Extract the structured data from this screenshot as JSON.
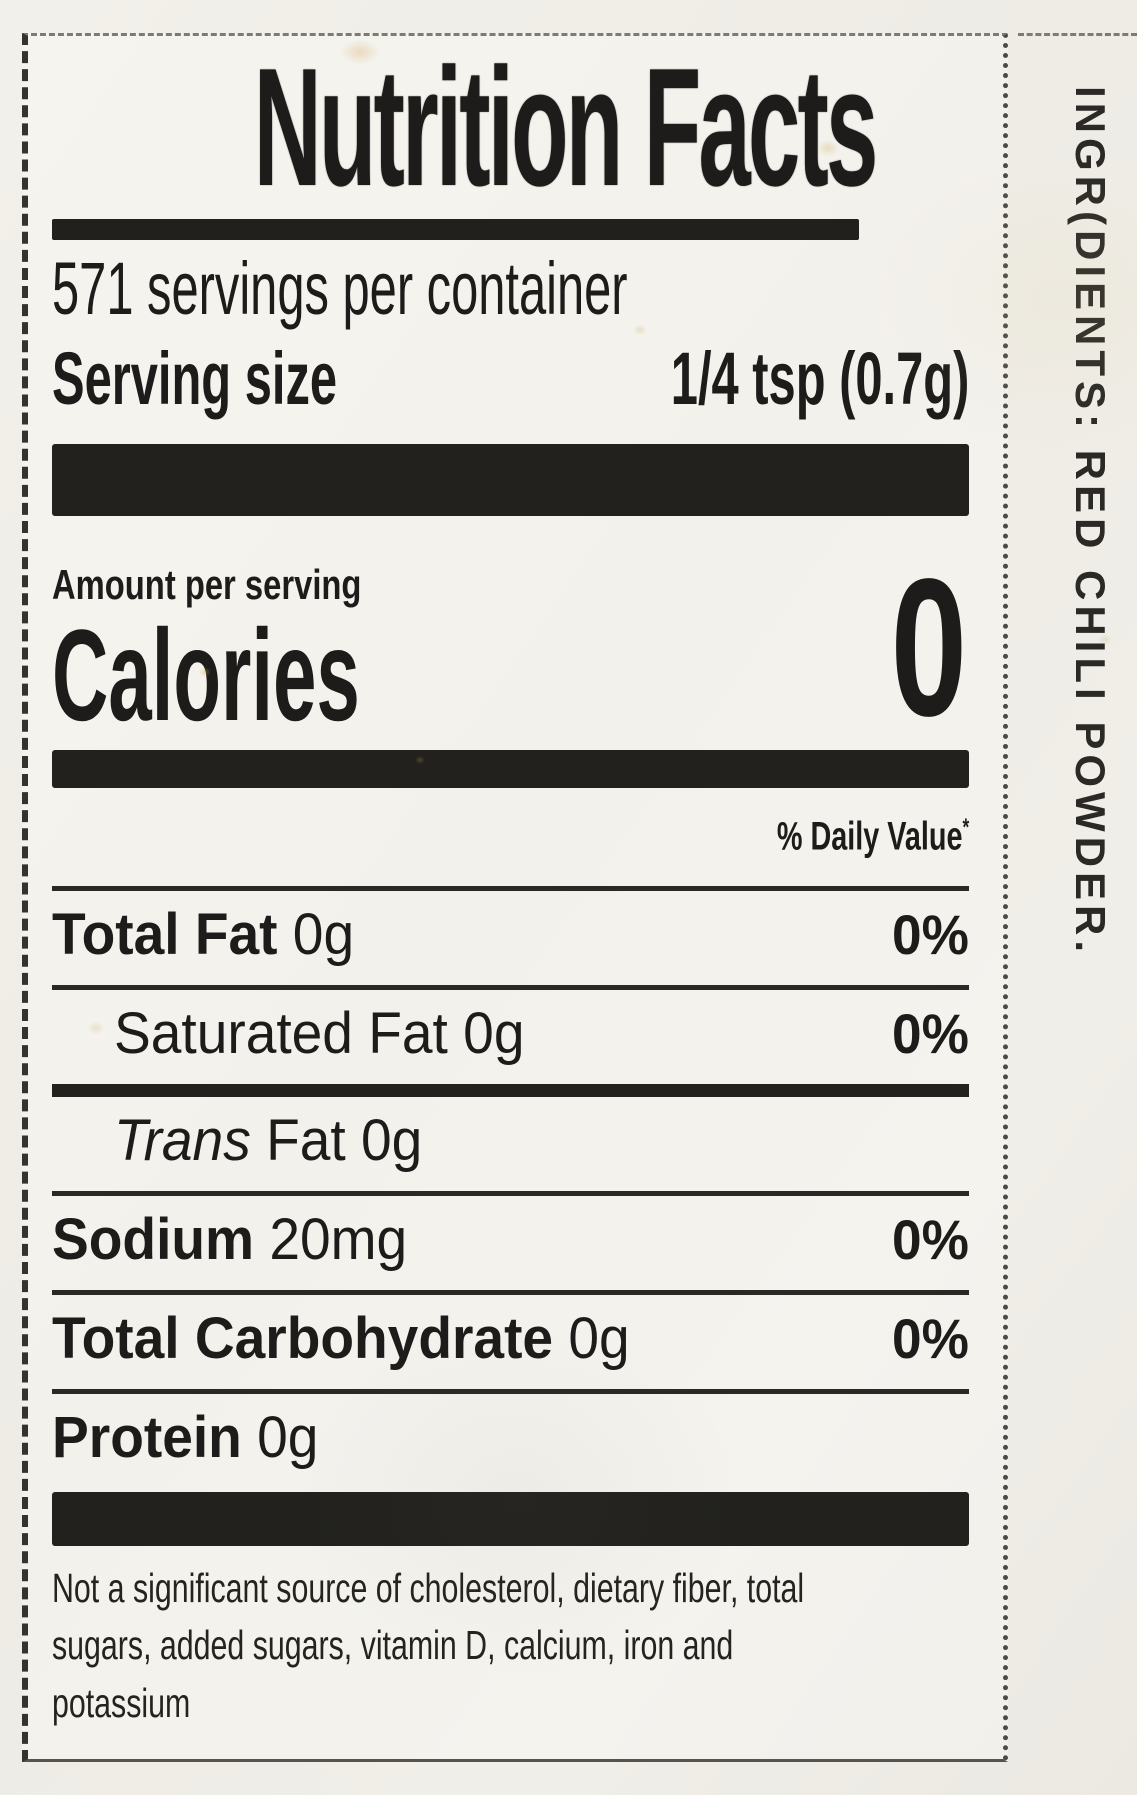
{
  "colors": {
    "ink": "#1d1c1a",
    "bar": "#22211e",
    "paper": "#f0eee8"
  },
  "nutrition_label": {
    "title": "Nutrition Facts",
    "servings_per_container": "571 servings per container",
    "serving_size_label": "Serving size",
    "serving_size_value": "1/4 tsp (0.7g)",
    "amount_per_serving": "Amount per serving",
    "calories_label": "Calories",
    "calories_value": "0",
    "daily_value_header": "% Daily Value",
    "daily_value_marker": "*",
    "rows": [
      {
        "name": "Total Fat",
        "rest": " 0g",
        "dv": "0%"
      },
      {
        "name": "Saturated Fat",
        "rest": " 0g",
        "dv": "0%"
      },
      {
        "name": "Trans",
        "rest": " Fat 0g",
        "dv": ""
      },
      {
        "name": "Sodium",
        "rest": " 20mg",
        "dv": "0%"
      },
      {
        "name": "Total Carbohydrate",
        "rest": " 0g",
        "dv": "0%"
      },
      {
        "name": "Protein",
        "rest": " 0g",
        "dv": ""
      }
    ],
    "footnote_lines": [
      "Not a significant source of cholesterol, dietary fiber, total",
      "sugars, added sugars, vitamin D, calcium, iron and",
      "potassium"
    ]
  },
  "ingredients_text": "INGR(DIENTS: RED CHILI POWDER."
}
